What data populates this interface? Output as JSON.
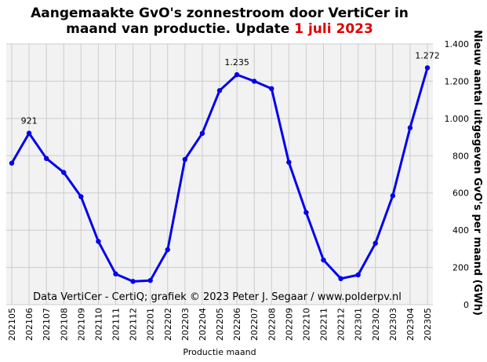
{
  "title": {
    "line1": "Aangemaakte GvO's zonnestroom door VertiCer in",
    "line2_prefix": "maand van productie. Update ",
    "line2_highlight": "1 juli  2023"
  },
  "credit": "Data VertiCer - CertiQ; grafiek © 2023 Peter J. Segaar / www.polderpv.nl",
  "colors": {
    "line": "#0000ee",
    "title_highlight": "#e00000",
    "plot_background": "#f2f2f2",
    "grid": "#cccccc"
  },
  "chart_data": {
    "type": "line",
    "categories": [
      "202105",
      "202106",
      "202107",
      "202108",
      "202109",
      "202110",
      "202111",
      "202112",
      "202201",
      "202202",
      "202203",
      "202204",
      "202205",
      "202206",
      "202207",
      "202208",
      "202209",
      "202210",
      "202211",
      "202212",
      "202301",
      "202302",
      "202303",
      "202304",
      "202305"
    ],
    "series": [
      {
        "values": [
          760,
          921,
          785,
          710,
          580,
          340,
          165,
          125,
          130,
          295,
          780,
          920,
          1150,
          1235,
          1200,
          1160,
          765,
          495,
          240,
          140,
          160,
          330,
          585,
          950,
          1272
        ]
      }
    ],
    "data_labels": [
      {
        "index": 1,
        "text": "921"
      },
      {
        "index": 13,
        "text": "1.235"
      },
      {
        "index": 24,
        "text": "1.272"
      }
    ],
    "xlabel": "Productie maand",
    "ylabel": "Nieuw  aantal uitgegeven GvO's per maand  (GWh)",
    "ylim": [
      0,
      1400
    ],
    "yticks": [
      0,
      200,
      400,
      600,
      800,
      1000,
      1200,
      1400
    ],
    "ytick_labels": [
      "0",
      "200",
      "400",
      "600",
      "800",
      "1.000",
      "1.200",
      "1.400"
    ],
    "grid": true,
    "y_axis_side": "right"
  }
}
